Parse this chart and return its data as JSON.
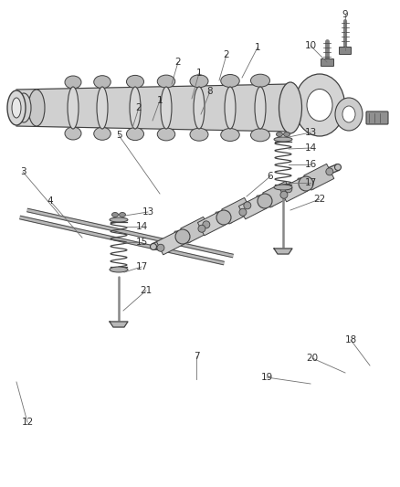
{
  "bg_color": "#ffffff",
  "lc": "#404040",
  "fc": "#d8d8d8",
  "fc2": "#c0c0c0",
  "label_color": "#303030",
  "fig_width": 4.38,
  "fig_height": 5.33,
  "dpi": 100
}
